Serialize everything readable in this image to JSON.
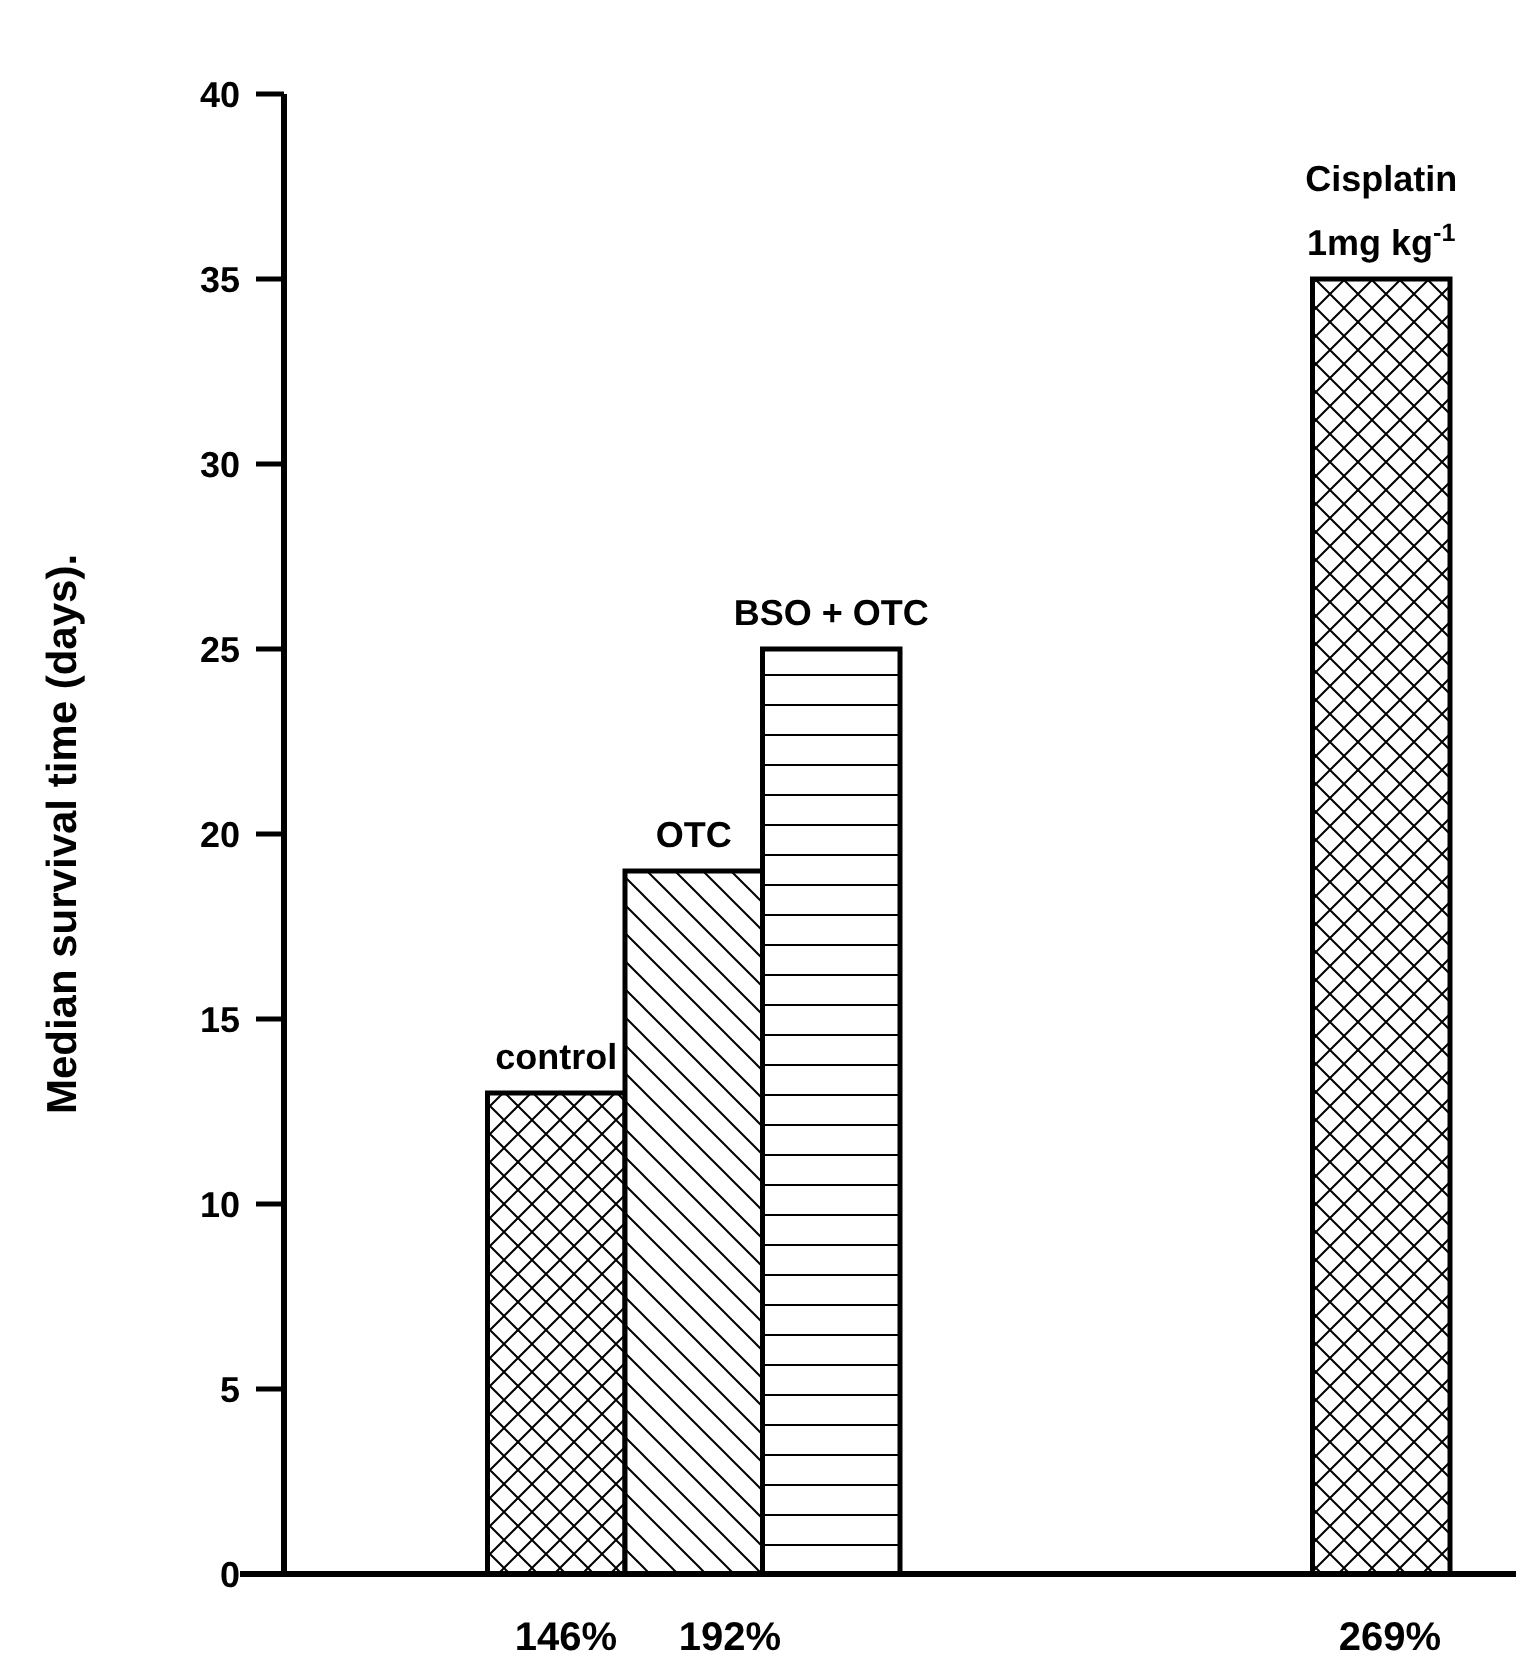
{
  "chart_data": {
    "type": "bar",
    "ylabel": "Median survival time (days).",
    "categories": [
      null,
      null,
      null,
      null,
      null,
      null,
      null,
      null
    ],
    "series": [
      {
        "name": "control",
        "color": "#000000",
        "values": [
          null,
          13,
          null,
          null,
          null,
          null,
          null,
          null
        ]
      },
      {
        "name": "OTC",
        "color": "#000000",
        "values": [
          null,
          null,
          19,
          null,
          null,
          null,
          null,
          null
        ]
      },
      {
        "name": "BSO + OTC",
        "color": "#000000",
        "values": [
          null,
          null,
          null,
          25,
          null,
          null,
          null,
          null
        ]
      },
      {
        "name": "Cisplatin\n1mg kg$^{-1}$",
        "color": "#000000",
        "values": [
          null,
          null,
          null,
          null,
          null,
          null,
          null,
          35
        ]
      }
    ],
    "annotations": [
      "146%",
      "192%",
      "269%"
    ],
    "ylim": [
      0,
      40
    ],
    "yticks": [
      0,
      5,
      10,
      15,
      20,
      25,
      30,
      35,
      40
    ],
    "grid": false
  }
}
